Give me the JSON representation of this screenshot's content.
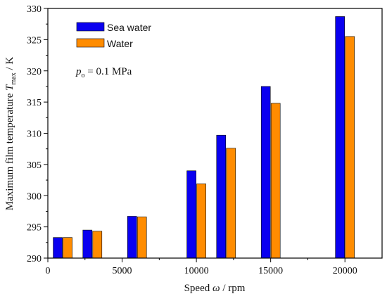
{
  "chart_data": {
    "type": "bar",
    "xlabel": "Speed",
    "xlabel_symbol": "ω",
    "xlabel_unit": "rpm",
    "ylabel": "Maximum film temperature",
    "ylabel_symbol": "T",
    "ylabel_subscript": "max",
    "ylabel_unit": "K",
    "xlim": [
      0,
      22500
    ],
    "ylim": [
      290,
      330
    ],
    "x_ticks": [
      0,
      5000,
      10000,
      15000,
      20000
    ],
    "y_ticks": [
      290,
      295,
      300,
      305,
      310,
      315,
      320,
      325,
      330
    ],
    "legend_position": "top-left",
    "annotation": {
      "symbol": "p",
      "subscript": "o",
      "text": " = 0.1 MPa"
    },
    "series": [
      {
        "name": "Sea water",
        "color": "#0a00f0",
        "x": [
          1000,
          3000,
          6000,
          10000,
          12000,
          15000,
          20000
        ],
        "values": [
          293.3,
          294.5,
          296.7,
          304.0,
          309.7,
          317.5,
          328.7
        ]
      },
      {
        "name": "Water",
        "color": "#ff8c00",
        "x": [
          1000,
          3000,
          6000,
          10000,
          12000,
          15000,
          20000
        ],
        "values": [
          293.3,
          294.3,
          296.6,
          301.9,
          307.6,
          314.8,
          325.5
        ]
      }
    ]
  }
}
